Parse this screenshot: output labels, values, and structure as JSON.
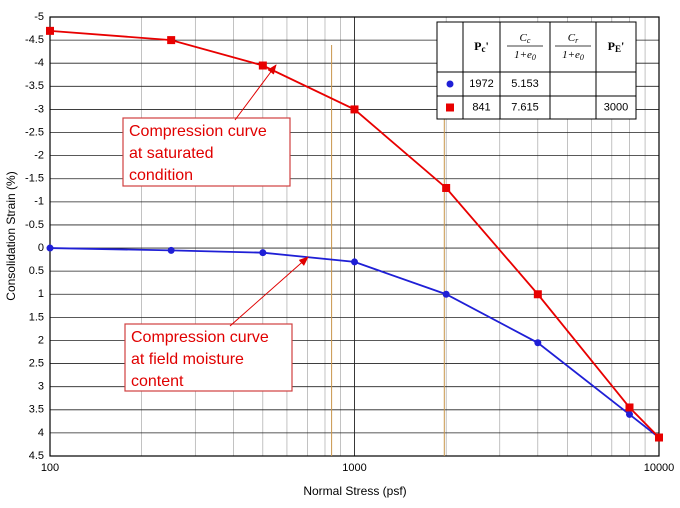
{
  "chart_data": {
    "type": "line",
    "xlabel": "Normal Stress (psf)",
    "ylabel": "Consolidation Strain (%)",
    "xscale": "log",
    "xlim": [
      100,
      10000
    ],
    "xticks": [
      100,
      1000,
      10000
    ],
    "ylim": [
      -5,
      4.5
    ],
    "y_inverted": true,
    "yticks": [
      -5,
      -4.5,
      -4,
      -3.5,
      -3,
      -2.5,
      -2,
      -1.5,
      -1,
      -0.5,
      0,
      0.5,
      1,
      1.5,
      2,
      2.5,
      3,
      3.5,
      4,
      4.5
    ],
    "grid": true,
    "x": [
      100,
      250,
      500,
      1000,
      2000,
      4000,
      8000,
      10000
    ],
    "series": [
      {
        "color": "#1f1fd6",
        "marker": "circle",
        "values": [
          0,
          0.05,
          0.1,
          0.3,
          1.0,
          2.05,
          3.6,
          4.1
        ]
      },
      {
        "color": "#e80000",
        "marker": "square",
        "values": [
          -4.7,
          -4.5,
          -3.95,
          -3.0,
          -1.3,
          1.0,
          3.45,
          4.1
        ]
      }
    ],
    "table": {
      "columns": [
        {
          "main": "P",
          "sub": "c",
          "suffix": "'"
        },
        {
          "num": "C",
          "num_sub": "c",
          "den": "1+e",
          "den_sub": "0"
        },
        {
          "num": "C",
          "num_sub": "r",
          "den": "1+e",
          "den_sub": "0"
        },
        {
          "main": "P",
          "sub": "E",
          "suffix": "'"
        }
      ],
      "rows": [
        [
          1972,
          5.153,
          null,
          null
        ],
        [
          841,
          7.615,
          null,
          3000
        ]
      ]
    },
    "annotations": [
      {
        "lines": [
          "Compression curve",
          "at saturated",
          "condition"
        ]
      },
      {
        "lines": [
          "Compression curve",
          "at field moisture",
          "content"
        ]
      }
    ]
  }
}
